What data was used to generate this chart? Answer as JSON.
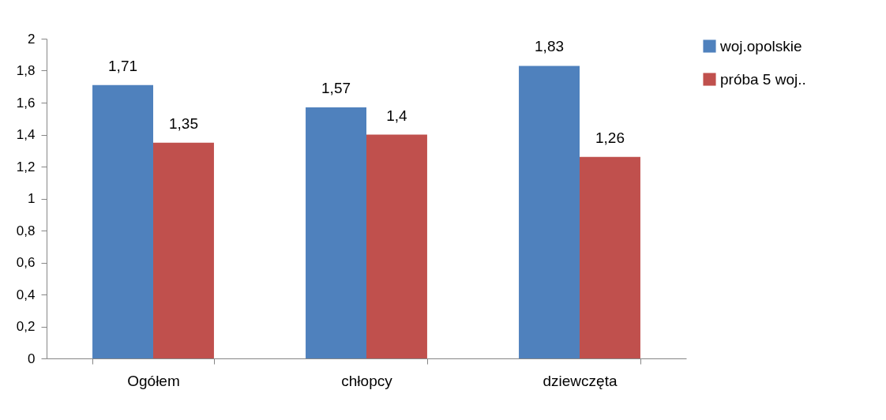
{
  "chart_data": {
    "type": "bar",
    "categories": [
      "Ogółem",
      "chłopcy",
      "dziewczęta"
    ],
    "series": [
      {
        "name": "woj.opolskie",
        "color": "#4f81bd",
        "values": [
          1.71,
          1.57,
          1.83
        ],
        "value_labels": [
          "1,71",
          "1,57",
          "1,83"
        ]
      },
      {
        "name": "próba 5 woj..",
        "color": "#c0504d",
        "values": [
          1.35,
          1.4,
          1.26
        ],
        "value_labels": [
          "1,35",
          "1,4",
          "1,26"
        ]
      }
    ],
    "ylim": [
      0,
      2
    ],
    "yticks": [
      0,
      {
        "value": 0.2,
        "label": "0,2"
      },
      {
        "value": 0.4,
        "label": "0,4"
      },
      {
        "value": 0.6,
        "label": "0,6"
      },
      {
        "value": 0.8,
        "label": "0,8"
      },
      1,
      {
        "value": 1.2,
        "label": "1,2"
      },
      {
        "value": 1.4,
        "label": "1,4"
      },
      {
        "value": 1.6,
        "label": "1,6"
      },
      {
        "value": 1.8,
        "label": "1,8"
      },
      2
    ],
    "grid": false,
    "legend": "right"
  }
}
